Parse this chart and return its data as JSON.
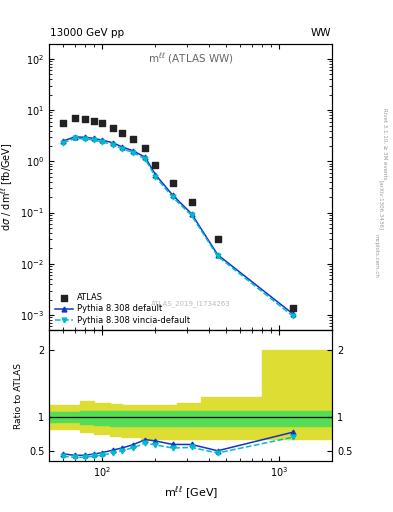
{
  "title_left": "13000 GeV pp",
  "title_right": "WW",
  "inner_title": "m^{ll} (ATLAS WW)",
  "watermark": "ATLAS_2019_I1734263",
  "right_label1": "Rivet 3.1.10, ≥ 3M events",
  "right_label2": "[arXiv:1306.3436]",
  "right_label3": "mcplots.cern.ch",
  "atlas_x": [
    60,
    70,
    80,
    90,
    100,
    115,
    130,
    150,
    175,
    200,
    250,
    320,
    450,
    1200
  ],
  "atlas_y": [
    5.5,
    7.0,
    6.8,
    6.2,
    5.5,
    4.5,
    3.5,
    2.7,
    1.8,
    0.85,
    0.37,
    0.16,
    0.03,
    0.00135
  ],
  "pythia_x": [
    60,
    70,
    80,
    90,
    100,
    115,
    130,
    150,
    175,
    200,
    250,
    320,
    450,
    1200
  ],
  "pythia_y": [
    2.5,
    3.0,
    2.95,
    2.8,
    2.6,
    2.3,
    1.9,
    1.6,
    1.2,
    0.55,
    0.22,
    0.095,
    0.015,
    0.00105
  ],
  "vincia_x": [
    60,
    70,
    80,
    90,
    100,
    115,
    130,
    150,
    175,
    200,
    250,
    320,
    450,
    1200
  ],
  "vincia_y": [
    2.3,
    2.8,
    2.75,
    2.6,
    2.4,
    2.1,
    1.75,
    1.48,
    1.1,
    0.5,
    0.2,
    0.088,
    0.014,
    0.00095
  ],
  "ratio_pythia_x": [
    60,
    70,
    80,
    90,
    100,
    115,
    130,
    150,
    175,
    200,
    250,
    320,
    450,
    1200
  ],
  "ratio_pythia_y": [
    0.455,
    0.43,
    0.434,
    0.452,
    0.473,
    0.511,
    0.543,
    0.593,
    0.667,
    0.647,
    0.595,
    0.594,
    0.5,
    0.778
  ],
  "ratio_vincia_x": [
    60,
    70,
    80,
    90,
    100,
    115,
    130,
    150,
    175,
    200,
    250,
    320,
    450,
    1200
  ],
  "ratio_vincia_y": [
    0.418,
    0.4,
    0.404,
    0.419,
    0.436,
    0.467,
    0.5,
    0.548,
    0.611,
    0.588,
    0.541,
    0.55,
    0.467,
    0.703
  ],
  "yellow_x_edges": [
    50,
    75,
    90,
    110,
    130,
    165,
    210,
    265,
    360,
    800,
    2000
  ],
  "yellow_lo": [
    0.82,
    0.78,
    0.75,
    0.72,
    0.7,
    0.68,
    0.68,
    0.68,
    0.68,
    0.68,
    0.68
  ],
  "yellow_hi": [
    1.18,
    1.25,
    1.22,
    1.2,
    1.18,
    1.18,
    1.18,
    1.22,
    1.3,
    2.0,
    2.0
  ],
  "green_x_edges": [
    50,
    75,
    90,
    110,
    130,
    165,
    210,
    265,
    360,
    800,
    2000
  ],
  "green_lo": [
    0.93,
    0.9,
    0.88,
    0.87,
    0.87,
    0.87,
    0.87,
    0.87,
    0.87,
    0.87,
    0.87
  ],
  "green_hi": [
    1.08,
    1.1,
    1.1,
    1.1,
    1.1,
    1.1,
    1.1,
    1.1,
    1.1,
    1.1,
    1.1
  ],
  "atlas_color": "#222222",
  "pythia_color": "#1133cc",
  "vincia_color": "#00bbcc",
  "green_color": "#55dd55",
  "yellow_color": "#dddd33",
  "legend_labels": [
    "ATLAS",
    "Pythia 8.308 default",
    "Pythia 8.308 vincia-default"
  ],
  "xlim": [
    50,
    2000
  ],
  "ylim_main": [
    0.0005,
    200
  ],
  "ylim_ratio": [
    0.35,
    2.3
  ]
}
